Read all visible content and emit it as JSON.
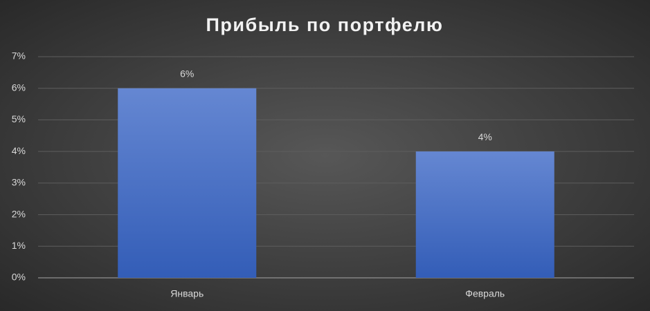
{
  "chart_data": {
    "type": "bar",
    "title": "Прибыль по портфелю",
    "categories": [
      "Январь",
      "Февраль"
    ],
    "values": [
      6,
      4
    ],
    "value_labels": [
      "6%",
      "4%"
    ],
    "color": "#4a70c4",
    "ylim": [
      0,
      7
    ],
    "yticks": [
      {
        "value": 0,
        "label": "0%"
      },
      {
        "value": 1,
        "label": "1%"
      },
      {
        "value": 2,
        "label": "2%"
      },
      {
        "value": 3,
        "label": "3%"
      },
      {
        "value": 4,
        "label": "4%"
      },
      {
        "value": 5,
        "label": "5%"
      },
      {
        "value": 6,
        "label": "6%"
      },
      {
        "value": 7,
        "label": "7%"
      }
    ],
    "grid": true
  }
}
